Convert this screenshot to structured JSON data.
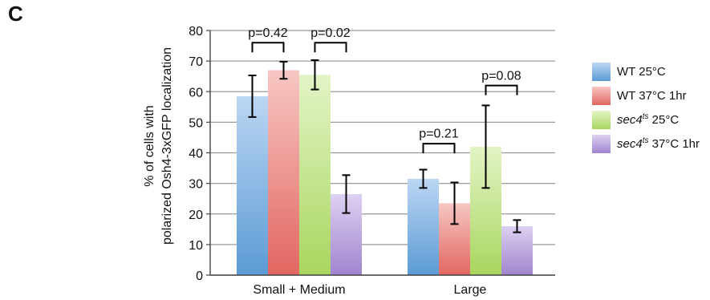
{
  "panel_letter": "C",
  "chart_data": {
    "type": "bar",
    "title": "",
    "ylabel_lines": [
      "% of cells with",
      "polarized Osh4-3xGFP localization"
    ],
    "xlabel": "",
    "ylim": [
      0,
      80
    ],
    "yticks": [
      0,
      10,
      20,
      30,
      40,
      50,
      60,
      70,
      80
    ],
    "grid": true,
    "legend_position": "right",
    "categories": [
      "Small + Medium",
      "Large"
    ],
    "series": [
      {
        "name": "WT 25°C",
        "name_parts": {
          "prefix": "WT",
          "sup": "",
          "suffix": " 25°C"
        },
        "values": [
          58.5,
          31.5
        ],
        "errors": [
          6.8,
          3.0
        ],
        "color": "#5b9bd5",
        "color_light": "#bcd6f3"
      },
      {
        "name": "WT 37°C 1hr",
        "name_parts": {
          "prefix": "WT",
          "sup": "",
          "suffix": " 37°C 1hr"
        },
        "values": [
          67.0,
          23.5
        ],
        "errors": [
          2.8,
          6.8
        ],
        "color": "#e26661",
        "color_light": "#f7c7c3"
      },
      {
        "name": "sec4ts 25°C",
        "name_parts": {
          "prefix": "sec4",
          "sup": "ts",
          "suffix": " 25°C"
        },
        "values": [
          65.5,
          42.0
        ],
        "errors": [
          4.8,
          13.5
        ],
        "color": "#a8d65e",
        "color_light": "#e3f4c6"
      },
      {
        "name": "sec4ts 37°C 1hr",
        "name_parts": {
          "prefix": "sec4",
          "sup": "ts",
          "suffix": " 37°C 1hr"
        },
        "values": [
          26.5,
          16.0
        ],
        "errors": [
          6.2,
          2.0
        ],
        "color": "#a084cf",
        "color_light": "#ddd1f1"
      }
    ],
    "annotations": [
      {
        "text": "p=0.42",
        "category": 0,
        "from_series": 0,
        "to_series": 1,
        "bracket_y": 76,
        "label_y": 79.5
      },
      {
        "text": "p=0.02",
        "category": 0,
        "from_series": 2,
        "to_series": 3,
        "bracket_y": 76,
        "label_y": 79.5
      },
      {
        "text": "p=0.21",
        "category": 1,
        "from_series": 0,
        "to_series": 1,
        "bracket_y": 43,
        "label_y": 46.5
      },
      {
        "text": "p=0.08",
        "category": 1,
        "from_series": 2,
        "to_series": 3,
        "bracket_y": 62,
        "label_y": 65.5
      }
    ]
  }
}
